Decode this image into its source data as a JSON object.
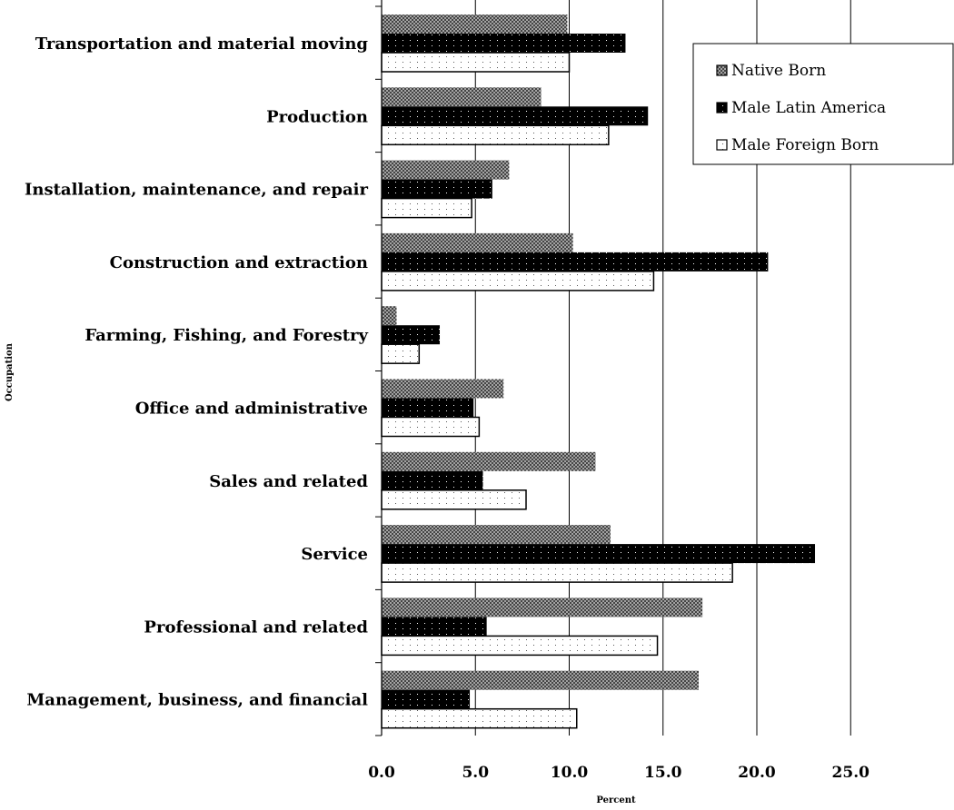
{
  "chart_data": {
    "type": "bar",
    "orientation": "horizontal",
    "title": "",
    "xlabel": "Percent",
    "ylabel": "Occupation",
    "xlim": [
      0,
      25
    ],
    "xticks": [
      "0.0",
      "5.0",
      "10.0",
      "15.0",
      "20.0",
      "25.0"
    ],
    "grid": "vertical",
    "legend_position": "top-right",
    "categories": [
      "Transportation and material moving",
      "Production",
      "Installation, maintenance, and repair",
      "Construction and extraction",
      "Farming, Fishing, and Forestry",
      "Office and administrative",
      "Sales and related",
      "Service",
      "Professional and related",
      "Management, business, and financial"
    ],
    "series": [
      {
        "name": "Native Born",
        "pattern": "crosshatch",
        "values": [
          9.9,
          8.5,
          6.8,
          10.2,
          0.8,
          6.5,
          11.4,
          12.2,
          17.1,
          16.9
        ]
      },
      {
        "name": "Male Latin America",
        "pattern": "black-dotted",
        "values": [
          13.0,
          14.2,
          5.9,
          20.6,
          3.1,
          4.9,
          5.4,
          23.1,
          5.6,
          4.7
        ]
      },
      {
        "name": "Male Foreign Born",
        "pattern": "white-dotted",
        "values": [
          10.0,
          12.1,
          4.8,
          14.5,
          2.0,
          5.2,
          7.7,
          18.7,
          14.7,
          10.4
        ]
      }
    ]
  }
}
